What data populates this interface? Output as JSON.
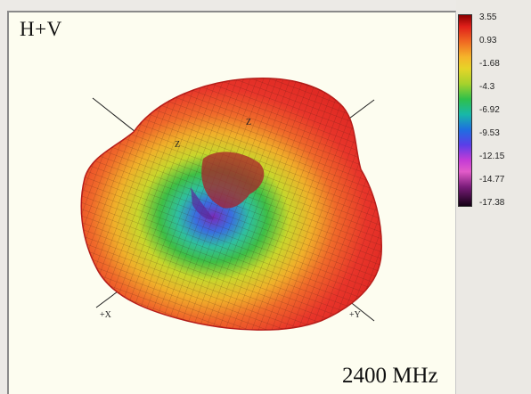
{
  "plot": {
    "title": "H+V",
    "frequency": "2400 MHz",
    "axes": {
      "x": "+X",
      "y": "+Y",
      "z": "Z",
      "z_neg": "Z"
    }
  },
  "colorbar": {
    "ticks": [
      "3.55",
      "0.93",
      "-1.68",
      "-4.3",
      "-6.92",
      "-9.53",
      "-12.15",
      "-14.77",
      "-17.38"
    ]
  },
  "colors": {
    "red": "#e8352a",
    "orange": "#f08a2a",
    "yellow": "#e8d42c",
    "green": "#36b84a",
    "blue": "#3a6ee0",
    "purple": "#7a3ad0"
  }
}
